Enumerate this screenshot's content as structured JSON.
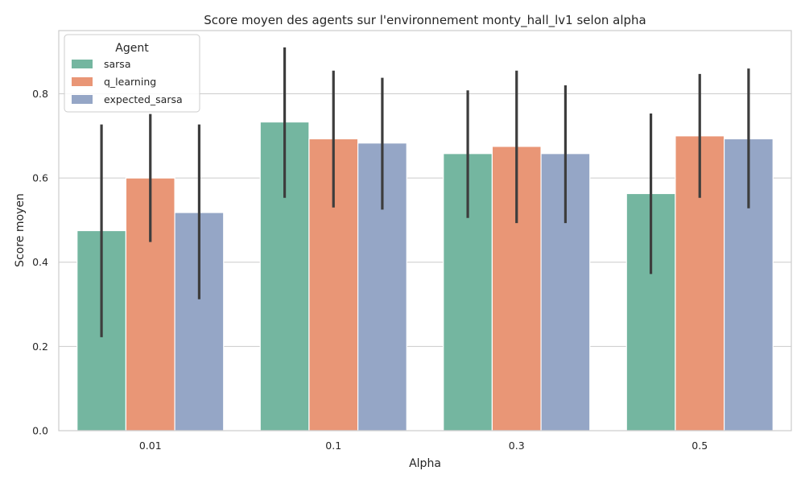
{
  "chart_data": {
    "type": "bar",
    "title": "Score moyen des agents sur l'environnement monty_hall_lv1 selon alpha",
    "xlabel": "Alpha",
    "ylabel": "Score moyen",
    "categories": [
      "0.01",
      "0.1",
      "0.3",
      "0.5"
    ],
    "ylim": [
      0,
      0.95
    ],
    "yticks": [
      "0.0",
      "0.2",
      "0.4",
      "0.6",
      "0.8"
    ],
    "grid": true,
    "legend": {
      "title": "Agent",
      "position": "top-left"
    },
    "series": [
      {
        "name": "sarsa",
        "color": "#74b6a0",
        "values": [
          0.475,
          0.733,
          0.658,
          0.563
        ],
        "ci_low": [
          0.222,
          0.553,
          0.505,
          0.372
        ],
        "ci_high": [
          0.727,
          0.91,
          0.808,
          0.753
        ]
      },
      {
        "name": "q_learning",
        "color": "#e99676",
        "values": [
          0.6,
          0.693,
          0.675,
          0.7
        ],
        "ci_low": [
          0.448,
          0.53,
          0.493,
          0.553
        ],
        "ci_high": [
          0.752,
          0.855,
          0.855,
          0.847
        ]
      },
      {
        "name": "expected_sarsa",
        "color": "#95a6c6",
        "values": [
          0.518,
          0.683,
          0.658,
          0.693
        ],
        "ci_low": [
          0.312,
          0.525,
          0.493,
          0.528
        ],
        "ci_high": [
          0.727,
          0.838,
          0.82,
          0.86
        ]
      }
    ],
    "errorbar_color": "#3d3d3d"
  }
}
